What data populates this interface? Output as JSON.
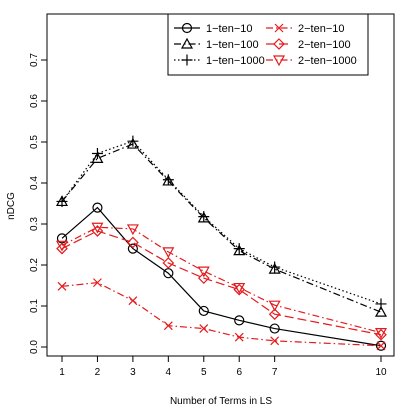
{
  "chart_data": {
    "type": "line",
    "title": "",
    "xlabel": "Number of Terms in LS",
    "ylabel": "nDCG",
    "x": [
      1,
      2,
      3,
      4,
      5,
      6,
      7,
      10
    ],
    "x_ticks": [
      "1",
      "2",
      "3",
      "4",
      "5",
      "6",
      "7",
      "10"
    ],
    "y_ticks": [
      "0.0",
      "0.1",
      "0.2",
      "0.3",
      "0.4",
      "0.5",
      "0.6",
      "0.7"
    ],
    "xlim": [
      1,
      10
    ],
    "ylim": [
      0,
      0.7
    ],
    "grid": false,
    "legend_position": "top-right",
    "series": [
      {
        "name": "1−ten−10",
        "color": "#000000",
        "dash": "solid",
        "marker": "circle",
        "values": [
          0.265,
          0.34,
          0.24,
          0.18,
          0.088,
          0.065,
          0.045,
          0.003
        ]
      },
      {
        "name": "1−ten−100",
        "color": "#000000",
        "dash": "dashdot",
        "marker": "triangle",
        "values": [
          0.355,
          0.46,
          0.495,
          0.405,
          0.315,
          0.235,
          0.19,
          0.085
        ]
      },
      {
        "name": "1−ten−1000",
        "color": "#000000",
        "dash": "dotted",
        "marker": "plus",
        "values": [
          0.355,
          0.472,
          0.502,
          0.408,
          0.318,
          0.24,
          0.195,
          0.105
        ]
      },
      {
        "name": "2−ten−10",
        "color": "#e41a1c",
        "dash": "dashdot",
        "marker": "x",
        "values": [
          0.148,
          0.157,
          0.113,
          0.052,
          0.045,
          0.024,
          0.015,
          0.003
        ]
      },
      {
        "name": "2−ten−100",
        "color": "#e41a1c",
        "dash": "longdash",
        "marker": "diamond",
        "values": [
          0.24,
          0.283,
          0.255,
          0.205,
          0.168,
          0.14,
          0.08,
          0.03
        ]
      },
      {
        "name": "2−ten−1000",
        "color": "#e41a1c",
        "dash": "dashdot",
        "marker": "triangle-down",
        "values": [
          0.248,
          0.292,
          0.288,
          0.232,
          0.185,
          0.145,
          0.102,
          0.035
        ]
      }
    ]
  }
}
